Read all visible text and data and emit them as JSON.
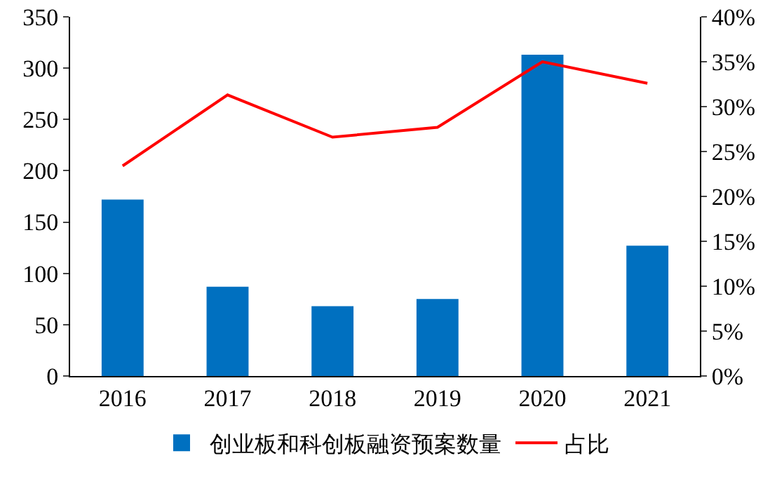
{
  "chart_data": {
    "type": "bar",
    "categories": [
      "2016",
      "2017",
      "2018",
      "2019",
      "2020",
      "2021"
    ],
    "series": [
      {
        "name": "创业板和科创板融资预案数量",
        "color": "#0070c0",
        "values": [
          172,
          87,
          68,
          75,
          313,
          127
        ]
      },
      {
        "name": "占比",
        "type": "line",
        "axis": "y2",
        "color": "#ff0000",
        "values": [
          23.4,
          31.3,
          26.6,
          27.7,
          35.0,
          32.6
        ]
      }
    ],
    "ylim": [
      0,
      350
    ],
    "yticks": [
      0,
      50,
      100,
      150,
      200,
      250,
      300,
      350
    ],
    "y2lim": [
      0,
      40
    ],
    "y2ticks": [
      {
        "value": 0,
        "label": "0%"
      },
      {
        "value": 5,
        "label": "5%"
      },
      {
        "value": 10,
        "label": "10%"
      },
      {
        "value": 15,
        "label": "15%"
      },
      {
        "value": 20,
        "label": "20%"
      },
      {
        "value": 25,
        "label": "25%"
      },
      {
        "value": 30,
        "label": "30%"
      },
      {
        "value": 35,
        "label": "35%"
      },
      {
        "value": 40,
        "label": "40%"
      }
    ],
    "grid": false,
    "legend": "bottom",
    "marker": "none",
    "line_style": "solid"
  }
}
